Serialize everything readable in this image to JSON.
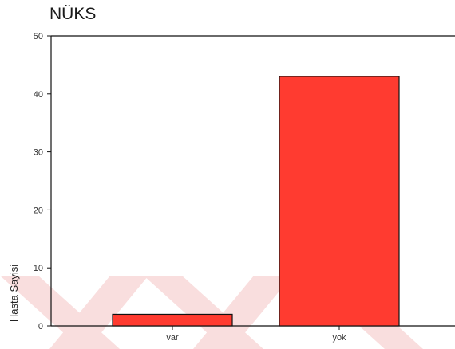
{
  "chart_data": {
    "type": "bar",
    "title": "NÜKS",
    "xlabel": "",
    "ylabel": "Hasta Sayisi",
    "categories": [
      "var",
      "yok"
    ],
    "values": [
      2,
      43
    ],
    "ylim": [
      0,
      50
    ],
    "yticks": [
      0,
      10,
      20,
      30,
      40,
      50
    ],
    "grid": false,
    "legend": "none",
    "bar_color": "#ff3b30",
    "bar_edge_color": "#111111",
    "watermark_color": "#f9dede"
  }
}
